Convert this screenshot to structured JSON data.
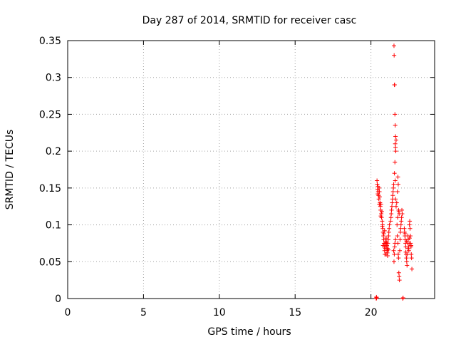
{
  "chart_data": {
    "type": "scatter",
    "title": "Day 287 of 2014, SRMTID for receiver casc",
    "xlabel": "GPS time / hours",
    "ylabel": "SRMTID / TECUs",
    "xlim": [
      0,
      24.2
    ],
    "ylim": [
      0,
      0.35
    ],
    "xticks": [
      0,
      5,
      10,
      15,
      20
    ],
    "xtick_labels": [
      "0",
      "5",
      "10",
      "15",
      "20"
    ],
    "yticks": [
      0,
      0.05,
      0.1,
      0.15,
      0.2,
      0.25,
      0.3,
      0.35
    ],
    "ytick_labels": [
      "0",
      "0.05",
      "0.1",
      "0.15",
      "0.2",
      "0.25",
      "0.3",
      "0.35"
    ],
    "grid": true,
    "marker": "+",
    "color": "#ff0000",
    "series": [
      {
        "name": "SRMTID",
        "points": [
          [
            20.35,
            0.0
          ],
          [
            20.36,
            0.002
          ],
          [
            20.37,
            0.001
          ],
          [
            20.4,
            0.16
          ],
          [
            20.42,
            0.155
          ],
          [
            20.44,
            0.148
          ],
          [
            20.46,
            0.152
          ],
          [
            20.48,
            0.145
          ],
          [
            20.5,
            0.14
          ],
          [
            20.52,
            0.135
          ],
          [
            20.54,
            0.15
          ],
          [
            20.56,
            0.145
          ],
          [
            20.58,
            0.138
          ],
          [
            20.6,
            0.13
          ],
          [
            20.62,
            0.125
          ],
          [
            20.64,
            0.12
          ],
          [
            20.66,
            0.128
          ],
          [
            20.68,
            0.115
          ],
          [
            20.7,
            0.11
          ],
          [
            20.72,
            0.118
          ],
          [
            20.74,
            0.105
          ],
          [
            20.76,
            0.1
          ],
          [
            20.78,
            0.095
          ],
          [
            20.8,
            0.09
          ],
          [
            20.82,
            0.085
          ],
          [
            20.84,
            0.08
          ],
          [
            20.86,
            0.075
          ],
          [
            20.88,
            0.07
          ],
          [
            20.9,
            0.065
          ],
          [
            20.92,
            0.06
          ],
          [
            20.94,
            0.068
          ],
          [
            20.96,
            0.072
          ],
          [
            20.98,
            0.078
          ],
          [
            21.0,
            0.082
          ],
          [
            21.02,
            0.076
          ],
          [
            21.04,
            0.07
          ],
          [
            21.06,
            0.065
          ],
          [
            21.08,
            0.062
          ],
          [
            21.1,
            0.068
          ],
          [
            21.12,
            0.075
          ],
          [
            21.14,
            0.08
          ],
          [
            21.16,
            0.085
          ],
          [
            21.18,
            0.09
          ],
          [
            21.2,
            0.095
          ],
          [
            21.22,
            0.1
          ],
          [
            20.45,
            0.142
          ],
          [
            20.55,
            0.128
          ],
          [
            20.65,
            0.112
          ],
          [
            20.75,
            0.098
          ],
          [
            20.85,
            0.088
          ],
          [
            20.95,
            0.074
          ],
          [
            21.05,
            0.072
          ],
          [
            21.15,
            0.066
          ],
          [
            20.9,
            0.092
          ],
          [
            21.0,
            0.06
          ],
          [
            21.1,
            0.058
          ],
          [
            20.8,
            0.072
          ],
          [
            21.3,
            0.105
          ],
          [
            21.32,
            0.11
          ],
          [
            21.34,
            0.115
          ],
          [
            21.36,
            0.12
          ],
          [
            21.38,
            0.125
          ],
          [
            21.4,
            0.13
          ],
          [
            21.42,
            0.135
          ],
          [
            21.44,
            0.14
          ],
          [
            21.46,
            0.145
          ],
          [
            21.48,
            0.15
          ],
          [
            21.5,
            0.155
          ],
          [
            21.52,
            0.343
          ],
          [
            21.53,
            0.33
          ],
          [
            21.55,
            0.29
          ],
          [
            21.56,
            0.29
          ],
          [
            21.58,
            0.25
          ],
          [
            21.6,
            0.235
          ],
          [
            21.62,
            0.22
          ],
          [
            21.6,
            0.21
          ],
          [
            21.62,
            0.205
          ],
          [
            21.64,
            0.2
          ],
          [
            21.66,
            0.215
          ],
          [
            21.58,
            0.185
          ],
          [
            21.55,
            0.17
          ],
          [
            21.6,
            0.16
          ],
          [
            21.62,
            0.135
          ],
          [
            21.66,
            0.125
          ],
          [
            21.7,
            0.13
          ],
          [
            21.75,
            0.145
          ],
          [
            21.78,
            0.165
          ],
          [
            21.8,
            0.155
          ],
          [
            21.82,
            0.12
          ],
          [
            21.84,
            0.118
          ],
          [
            21.86,
            0.115
          ],
          [
            21.76,
            0.11
          ],
          [
            21.72,
            0.1
          ],
          [
            21.74,
            0.085
          ],
          [
            21.78,
            0.075
          ],
          [
            21.8,
            0.06
          ],
          [
            21.82,
            0.055
          ],
          [
            21.84,
            0.035
          ],
          [
            21.86,
            0.03
          ],
          [
            21.88,
            0.025
          ],
          [
            21.9,
            0.065
          ],
          [
            21.92,
            0.08
          ],
          [
            21.94,
            0.09
          ],
          [
            21.96,
            0.095
          ],
          [
            21.98,
            0.1
          ],
          [
            22.0,
            0.105
          ],
          [
            22.02,
            0.11
          ],
          [
            22.04,
            0.12
          ],
          [
            22.06,
            0.115
          ],
          [
            21.5,
            0.065
          ],
          [
            21.52,
            0.05
          ],
          [
            21.54,
            0.06
          ],
          [
            21.56,
            0.07
          ],
          [
            21.58,
            0.075
          ],
          [
            21.62,
            0.08
          ],
          [
            22.1,
            0.0
          ],
          [
            22.12,
            0.001
          ],
          [
            22.2,
            0.095
          ],
          [
            22.22,
            0.09
          ],
          [
            22.24,
            0.085
          ],
          [
            22.26,
            0.08
          ],
          [
            22.28,
            0.075
          ],
          [
            22.3,
            0.07
          ],
          [
            22.32,
            0.06
          ],
          [
            22.34,
            0.055
          ],
          [
            22.36,
            0.05
          ],
          [
            22.38,
            0.045
          ],
          [
            22.4,
            0.06
          ],
          [
            22.42,
            0.075
          ],
          [
            22.44,
            0.085
          ],
          [
            22.46,
            0.08
          ],
          [
            22.48,
            0.07
          ],
          [
            22.5,
            0.065
          ],
          [
            22.52,
            0.075
          ],
          [
            22.54,
            0.1
          ],
          [
            22.56,
            0.105
          ],
          [
            22.58,
            0.095
          ],
          [
            22.6,
            0.085
          ],
          [
            22.62,
            0.075
          ],
          [
            22.64,
            0.07
          ],
          [
            22.66,
            0.06
          ],
          [
            22.68,
            0.055
          ],
          [
            22.7,
            0.04
          ],
          [
            22.25,
            0.088
          ],
          [
            22.35,
            0.078
          ],
          [
            22.45,
            0.068
          ],
          [
            22.55,
            0.082
          ],
          [
            22.65,
            0.072
          ],
          [
            22.3,
            0.063
          ]
        ]
      }
    ]
  }
}
